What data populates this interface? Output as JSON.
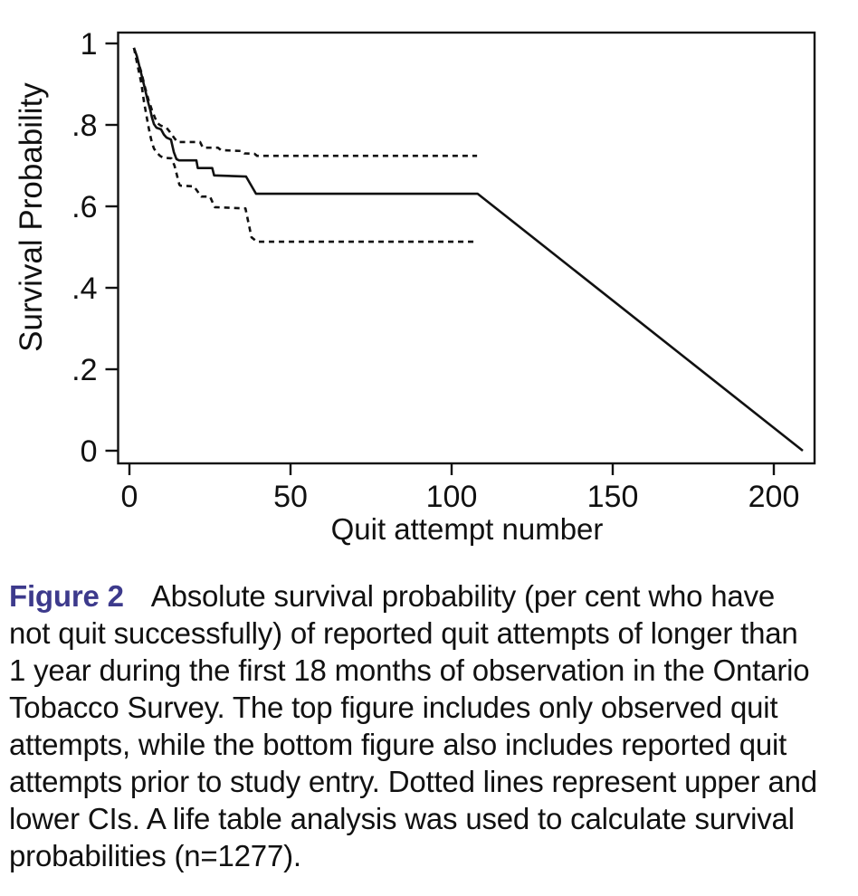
{
  "chart_data": {
    "type": "line",
    "title": "",
    "xlabel": "Quit attempt number",
    "ylabel": "Survival Probability",
    "xlim": [
      0,
      213
    ],
    "ylim": [
      0,
      1.03
    ],
    "x_ticks": [
      0,
      50,
      100,
      150,
      200
    ],
    "x_tick_labels": [
      "0",
      "50",
      "100",
      "150",
      "200"
    ],
    "y_ticks": [
      0,
      0.2,
      0.4,
      0.6,
      0.8,
      1
    ],
    "y_tick_labels": [
      "0",
      ".2",
      ".4",
      ".6",
      ".8",
      "1"
    ],
    "grid": false,
    "series": [
      {
        "name": "survival_estimate",
        "style": "solid",
        "points": [
          [
            1.4,
            0.989
          ],
          [
            2.3,
            0.969
          ],
          [
            3.1,
            0.944
          ],
          [
            3.9,
            0.918
          ],
          [
            4.8,
            0.889
          ],
          [
            5.6,
            0.862
          ],
          [
            6.5,
            0.836
          ],
          [
            7.0,
            0.818
          ],
          [
            7.6,
            0.802
          ],
          [
            8.4,
            0.793
          ],
          [
            9.8,
            0.789
          ],
          [
            10.7,
            0.776
          ],
          [
            11.5,
            0.769
          ],
          [
            12.9,
            0.764
          ],
          [
            13.8,
            0.733
          ],
          [
            14.6,
            0.716
          ],
          [
            15.4,
            0.713
          ],
          [
            20.8,
            0.713
          ],
          [
            21.2,
            0.694
          ],
          [
            25.7,
            0.694
          ],
          [
            26.3,
            0.676
          ],
          [
            36.2,
            0.673
          ],
          [
            39.3,
            0.631
          ],
          [
            108.1,
            0.631
          ],
          [
            209,
            0
          ]
        ]
      },
      {
        "name": "upper_ci",
        "style": "dotted",
        "points": [
          [
            1.4,
            0.989
          ],
          [
            2.5,
            0.96
          ],
          [
            3.7,
            0.929
          ],
          [
            4.8,
            0.893
          ],
          [
            5.9,
            0.862
          ],
          [
            7.0,
            0.836
          ],
          [
            7.9,
            0.818
          ],
          [
            8.7,
            0.804
          ],
          [
            9.8,
            0.798
          ],
          [
            11.5,
            0.793
          ],
          [
            12.6,
            0.782
          ],
          [
            13.8,
            0.769
          ],
          [
            14.9,
            0.758
          ],
          [
            21.9,
            0.758
          ],
          [
            22.8,
            0.744
          ],
          [
            27.5,
            0.744
          ],
          [
            28.4,
            0.738
          ],
          [
            34.8,
            0.736
          ],
          [
            35.7,
            0.73
          ],
          [
            38.8,
            0.729
          ],
          [
            39.6,
            0.724
          ],
          [
            107.9,
            0.724
          ]
        ]
      },
      {
        "name": "lower_ci",
        "style": "dotted",
        "points": [
          [
            1.4,
            0.989
          ],
          [
            2.5,
            0.947
          ],
          [
            3.7,
            0.902
          ],
          [
            4.5,
            0.858
          ],
          [
            5.3,
            0.822
          ],
          [
            5.9,
            0.796
          ],
          [
            6.5,
            0.773
          ],
          [
            7.0,
            0.756
          ],
          [
            7.6,
            0.742
          ],
          [
            8.4,
            0.733
          ],
          [
            9.5,
            0.724
          ],
          [
            10.5,
            0.719
          ],
          [
            13.0,
            0.718
          ],
          [
            14.0,
            0.7
          ],
          [
            15.5,
            0.653
          ],
          [
            15.8,
            0.651
          ],
          [
            20.0,
            0.649
          ],
          [
            22.3,
            0.624
          ],
          [
            25.0,
            0.624
          ],
          [
            26.5,
            0.598
          ],
          [
            36.0,
            0.595
          ],
          [
            37.9,
            0.524
          ],
          [
            39.6,
            0.513
          ],
          [
            107.9,
            0.513
          ]
        ]
      }
    ]
  },
  "caption": {
    "label": "Figure 2",
    "lines": [
      "Absolute survival probability (per cent who have",
      "not quit successfully) of reported quit attempts of longer than",
      "1 year during the first 18 months of observation in the Ontario",
      "Tobacco Survey. The top figure includes only observed quit",
      "attempts, while the bottom figure also includes reported quit",
      "attempts prior to study entry. Dotted lines represent upper and",
      "lower CIs. A life table analysis was used to calculate survival",
      "probabilities (n=1277)."
    ]
  },
  "colors": {
    "figure_label": "#3d3a8c",
    "line": "#111111",
    "text": "#111111"
  }
}
